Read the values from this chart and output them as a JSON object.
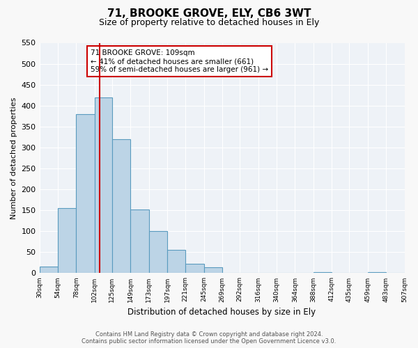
{
  "title": "71, BROOKE GROVE, ELY, CB6 3WT",
  "subtitle": "Size of property relative to detached houses in Ely",
  "xlabel": "Distribution of detached houses by size in Ely",
  "ylabel": "Number of detached properties",
  "bar_edges": [
    30,
    54,
    78,
    102,
    125,
    149,
    173,
    197,
    221,
    245,
    269,
    292,
    316,
    340,
    364,
    388,
    412,
    435,
    459,
    483,
    507
  ],
  "bar_heights": [
    15,
    155,
    380,
    420,
    320,
    152,
    100,
    55,
    22,
    14,
    0,
    0,
    0,
    0,
    0,
    2,
    0,
    0,
    2,
    0
  ],
  "bar_color": "#bcd4e6",
  "bar_edge_color": "#5a9bbf",
  "property_line_x": 109,
  "property_line_color": "#cc0000",
  "annotation_lines": [
    "71 BROOKE GROVE: 109sqm",
    "← 41% of detached houses are smaller (661)",
    "59% of semi-detached houses are larger (961) →"
  ],
  "ylim": [
    0,
    550
  ],
  "yticks": [
    0,
    50,
    100,
    150,
    200,
    250,
    300,
    350,
    400,
    450,
    500,
    550
  ],
  "tick_labels": [
    "30sqm",
    "54sqm",
    "78sqm",
    "102sqm",
    "125sqm",
    "149sqm",
    "173sqm",
    "197sqm",
    "221sqm",
    "245sqm",
    "269sqm",
    "292sqm",
    "316sqm",
    "340sqm",
    "364sqm",
    "388sqm",
    "412sqm",
    "435sqm",
    "459sqm",
    "483sqm",
    "507sqm"
  ],
  "footer_line1": "Contains HM Land Registry data © Crown copyright and database right 2024.",
  "footer_line2": "Contains public sector information licensed under the Open Government Licence v3.0.",
  "fig_facecolor": "#f8f8f8",
  "ax_facecolor": "#eef2f7"
}
